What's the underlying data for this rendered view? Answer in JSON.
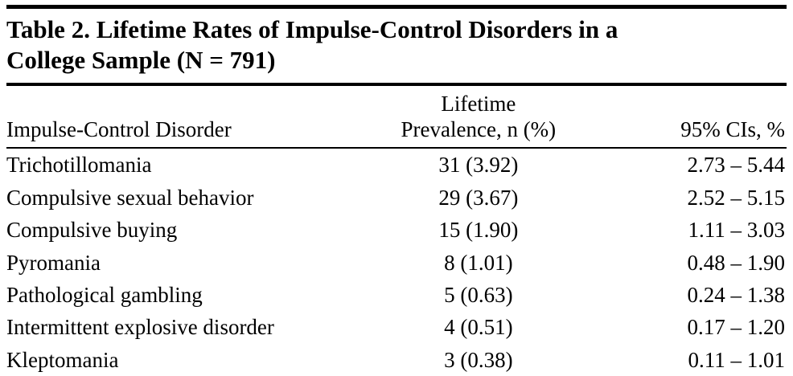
{
  "page": {
    "title_line1": "Table 2. Lifetime Rates of Impulse-Control Disorders in a",
    "title_line2": "College Sample (N = 791)"
  },
  "table": {
    "header": {
      "disorder": "Impulse-Control Disorder",
      "prevalence_line1": "Lifetime",
      "prevalence_line2": "Prevalence, n (%)",
      "ci": "95% CIs, %"
    },
    "rows": [
      {
        "disorder": "Trichotillomania",
        "prevalence": "31 (3.92)",
        "ci": "2.73 – 5.44"
      },
      {
        "disorder": "Compulsive sexual behavior",
        "prevalence": "29 (3.67)",
        "ci": "2.52 – 5.15"
      },
      {
        "disorder": "Compulsive buying",
        "prevalence": "15 (1.90)",
        "ci": "1.11 – 3.03"
      },
      {
        "disorder": "Pyromania",
        "prevalence": "8 (1.01)",
        "ci": "0.48 – 1.90"
      },
      {
        "disorder": "Pathological gambling",
        "prevalence": "5 (0.63)",
        "ci": "0.24 – 1.38"
      },
      {
        "disorder": "Intermittent explosive disorder",
        "prevalence": "4 (0.51)",
        "ci": "0.17 – 1.20"
      },
      {
        "disorder": "Kleptomania",
        "prevalence": "3 (0.38)",
        "ci": "0.11 – 1.01"
      }
    ]
  },
  "chart_data": {
    "type": "table",
    "title": "Table 2. Lifetime Rates of Impulse-Control Disorders in a College Sample (N = 791)",
    "sample_size": 791,
    "columns": [
      "Impulse-Control Disorder",
      "Lifetime Prevalence, n (%)",
      "95% CIs, %"
    ],
    "rows": [
      {
        "disorder": "Trichotillomania",
        "n": 31,
        "percent": 3.92,
        "ci_low": 2.73,
        "ci_high": 5.44
      },
      {
        "disorder": "Compulsive sexual behavior",
        "n": 29,
        "percent": 3.67,
        "ci_low": 2.52,
        "ci_high": 5.15
      },
      {
        "disorder": "Compulsive buying",
        "n": 15,
        "percent": 1.9,
        "ci_low": 1.11,
        "ci_high": 3.03
      },
      {
        "disorder": "Pyromania",
        "n": 8,
        "percent": 1.01,
        "ci_low": 0.48,
        "ci_high": 1.9
      },
      {
        "disorder": "Pathological gambling",
        "n": 5,
        "percent": 0.63,
        "ci_low": 0.24,
        "ci_high": 1.38
      },
      {
        "disorder": "Intermittent explosive disorder",
        "n": 4,
        "percent": 0.51,
        "ci_low": 0.17,
        "ci_high": 1.2
      },
      {
        "disorder": "Kleptomania",
        "n": 3,
        "percent": 0.38,
        "ci_low": 0.11,
        "ci_high": 1.01
      }
    ]
  },
  "colors": {
    "text": "#000000",
    "rule": "#000000",
    "background": "#ffffff"
  }
}
